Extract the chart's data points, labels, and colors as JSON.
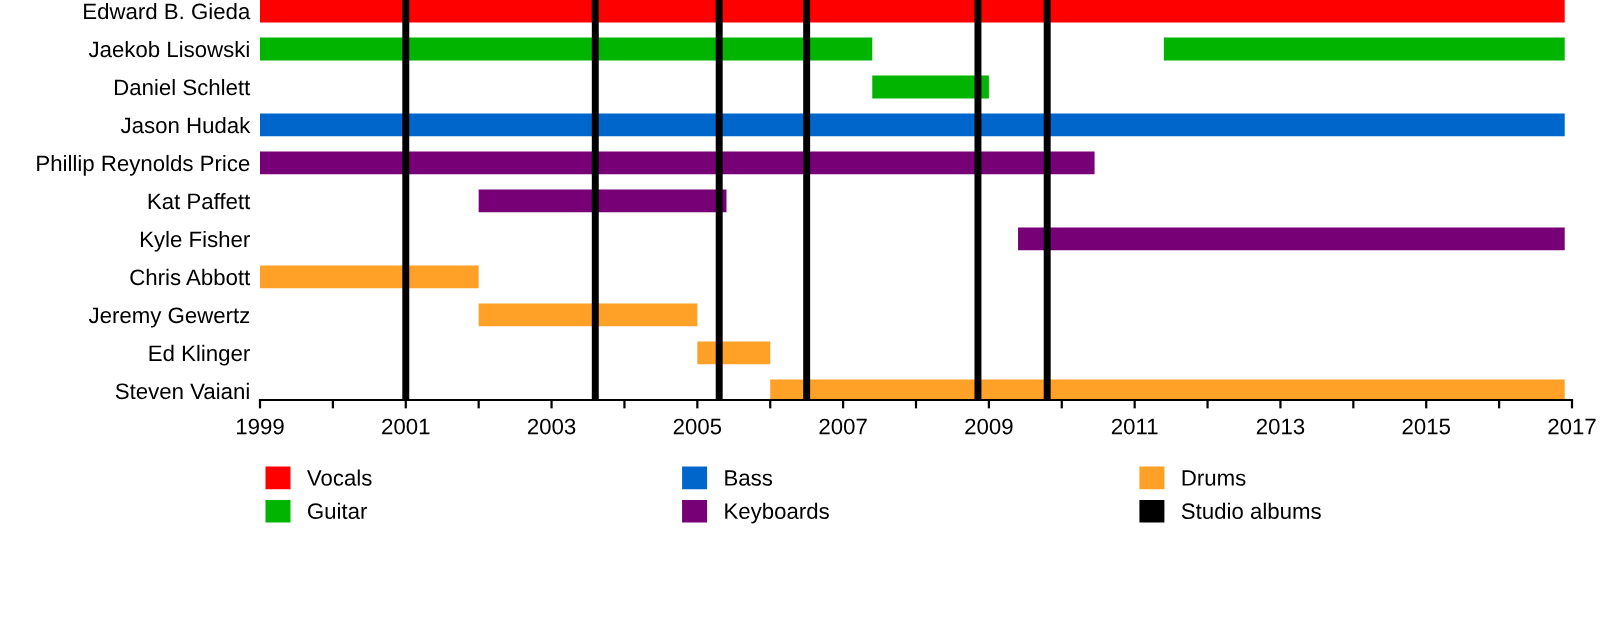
{
  "chart_data": {
    "type": "bar",
    "orientation": "horizontal",
    "categories": [
      "Edward B. Gieda",
      "Jaekob Lisowski",
      "Daniel Schlett",
      "Jason Hudak",
      "Phillip Reynolds Price",
      "Kat Paffett",
      "Kyle Fisher",
      "Chris Abbott",
      "Jeremy Gewertz",
      "Ed Klinger",
      "Steven Vaiani"
    ],
    "series": [
      {
        "name": "Vocals",
        "color": "#ff0000",
        "base": [
          1999,
          null,
          null,
          null,
          null,
          null,
          null,
          null,
          null,
          null,
          null
        ],
        "values": [
          17.9,
          null,
          null,
          null,
          null,
          null,
          null,
          null,
          null,
          null,
          null
        ]
      },
      {
        "name": "Guitar",
        "color": "#00b400",
        "base": [
          null,
          1999,
          2007.4,
          null,
          null,
          null,
          null,
          null,
          null,
          null,
          null
        ],
        "values": [
          null,
          8.4,
          1.6,
          null,
          null,
          null,
          null,
          null,
          null,
          null,
          null
        ]
      },
      {
        "color": "#00b400",
        "base": [
          null,
          2011.4,
          null,
          null,
          null,
          null,
          null,
          null,
          null,
          null,
          null
        ],
        "values": [
          null,
          5.5,
          null,
          null,
          null,
          null,
          null,
          null,
          null,
          null,
          null
        ]
      },
      {
        "name": "Bass",
        "color": "#0066cc",
        "base": [
          null,
          null,
          null,
          1999,
          null,
          null,
          null,
          null,
          null,
          null,
          null
        ],
        "values": [
          null,
          null,
          null,
          17.9,
          null,
          null,
          null,
          null,
          null,
          null,
          null
        ]
      },
      {
        "name": "Keyboards",
        "color": "#770077",
        "base": [
          null,
          null,
          null,
          null,
          1999,
          2002.0,
          2009.4,
          null,
          null,
          null,
          null
        ],
        "values": [
          null,
          null,
          null,
          null,
          11.45,
          3.4,
          7.5,
          null,
          null,
          null,
          null
        ]
      },
      {
        "name": "Drums",
        "color": "#ffa027",
        "base": [
          null,
          null,
          null,
          null,
          null,
          null,
          null,
          1999,
          2002.0,
          2005.0,
          2006.0
        ],
        "values": [
          null,
          null,
          null,
          null,
          null,
          null,
          null,
          3.0,
          3.0,
          1.0,
          10.9
        ]
      }
    ],
    "ref_lines": [
      {
        "axis": "x",
        "value": 2001.0,
        "label": "Studio albums",
        "color": "#000000"
      },
      {
        "axis": "x",
        "value": 2003.6,
        "color": "#000000"
      },
      {
        "axis": "x",
        "value": 2005.3,
        "color": "#000000"
      },
      {
        "axis": "x",
        "value": 2006.5,
        "color": "#000000"
      },
      {
        "axis": "x",
        "value": 2008.85,
        "color": "#000000"
      },
      {
        "axis": "x",
        "value": 2009.8,
        "color": "#000000"
      }
    ],
    "xlim": [
      1999,
      2017
    ],
    "xticks": [
      1999,
      {
        "value": 2000,
        "label": null
      },
      2001,
      {
        "value": 2002,
        "label": null
      },
      2003,
      {
        "value": 2004,
        "label": null
      },
      2005,
      {
        "value": 2006,
        "label": null
      },
      2007,
      {
        "value": 2008,
        "label": null
      },
      2009,
      {
        "value": 2010,
        "label": null
      },
      2011,
      {
        "value": 2012,
        "label": null
      },
      2013,
      {
        "value": 2014,
        "label": null
      },
      2015,
      {
        "value": 2016,
        "label": null
      },
      2017
    ],
    "grid": false,
    "legend": "bottom"
  }
}
